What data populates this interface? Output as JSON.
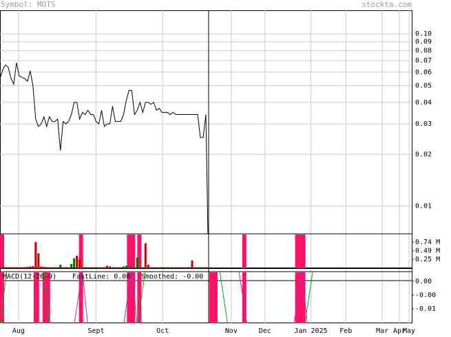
{
  "header": {
    "symbol": "Symbol: MOTS",
    "site": "stockta.com"
  },
  "chart_data": [
    {
      "type": "line",
      "log": true,
      "color": "#000000",
      "grid": true,
      "xlim": [
        0,
        150
      ],
      "xticks": [
        {
          "value": 6.75,
          "label": "Aug"
        },
        {
          "value": 35,
          "label": "Sept"
        },
        {
          "value": 59.25,
          "label": "Oct"
        },
        {
          "value": 84.25,
          "label": "Nov"
        },
        {
          "value": 96.5,
          "label": "Dec"
        },
        {
          "value": 113.25,
          "label": "Jan 2025"
        },
        {
          "value": 126,
          "label": "Feb"
        },
        {
          "value": 139.25,
          "label": "Mar"
        },
        {
          "value": 145.5,
          "label": "Apr"
        },
        {
          "value": 149,
          "label": "May"
        }
      ],
      "ylim": [
        0.0069,
        0.137
      ],
      "yticks": [
        {
          "value": 0.1,
          "label": "0.10"
        },
        0.09,
        0.08,
        0.07,
        0.06,
        {
          "value": 0.05,
          "label": "0.05"
        },
        0.04,
        0.03,
        0.02,
        0.01
      ],
      "values": [
        0.055,
        0.062,
        0.066,
        0.064,
        0.055,
        0.051,
        0.068,
        0.057,
        0.056,
        0.055,
        0.053,
        0.061,
        0.05,
        0.032,
        0.029,
        0.03,
        0.033,
        0.029,
        0.033,
        0.031,
        0.031,
        0.032,
        0.021,
        0.031,
        0.03,
        0.031,
        0.034,
        0.04,
        0.04,
        0.032,
        0.035,
        0.034,
        0.036,
        0.034,
        0.034,
        0.031,
        0.03,
        0.036,
        0.029,
        0.03,
        0.03,
        0.038,
        0.031,
        0.031,
        0.031,
        0.034,
        0.041,
        0.047,
        0.047,
        0.034,
        0.036,
        0.04,
        0.035,
        0.04,
        0.04,
        0.039,
        0.04,
        0.036,
        0.037,
        0.035,
        0.035,
        0.035,
        0.034,
        0.035,
        0.034,
        0.034,
        0.034,
        0.034,
        0.034,
        0.034,
        0.034,
        0.034,
        0.034,
        0.025,
        0.025,
        0.034,
        0.004
      ]
    },
    {
      "type": "bar",
      "ylim": [
        0,
        0.97
      ],
      "yticks": [
        {
          "value": 0.74,
          "label": "0.74 M"
        },
        {
          "value": 0.49,
          "label": "0.49 M"
        },
        {
          "value": 0.25,
          "label": "0.25 M"
        }
      ],
      "bands_color": "#ff1166",
      "bands": [
        [
          0,
          1.5
        ],
        [
          28.75,
          30.25
        ],
        [
          46.25,
          49.25
        ],
        [
          50,
          51.5
        ],
        [
          88.25,
          89.75
        ],
        [
          107.5,
          111.25
        ]
      ],
      "series": [
        {
          "color": "#cc0000",
          "values": [
            0.03,
            0.03,
            0.03,
            0.03,
            0.03,
            0.03,
            0.03,
            0.03,
            0.03,
            0.03,
            0.04,
            0.05,
            0.06,
            0.74,
            0.42,
            0.05,
            0.04,
            0.03,
            null,
            0.03,
            null,
            0.03,
            null,
            0.03,
            null,
            0.03,
            null,
            null,
            0.35,
            0.25,
            0.03,
            null,
            0.03,
            null,
            0.03,
            null,
            0.03,
            null,
            0.03,
            0.07,
            0.05,
            null,
            0.03,
            null,
            0.03,
            null,
            null,
            null,
            0.03,
            null,
            null,
            null,
            null,
            0.7,
            0.1,
            0.03,
            null,
            0.03,
            null,
            0.03,
            null,
            0.03,
            null,
            0.03,
            null,
            0.03,
            null,
            0.03,
            null,
            0.03,
            0.22,
            0.03,
            null,
            null,
            null,
            0.03,
            0.03
          ]
        },
        {
          "color": "#006600",
          "values": [
            null,
            null,
            null,
            null,
            null,
            null,
            null,
            null,
            null,
            null,
            null,
            null,
            null,
            null,
            null,
            null,
            null,
            null,
            0.03,
            null,
            0.03,
            null,
            0.1,
            null,
            0.03,
            null,
            0.12,
            0.28,
            null,
            null,
            null,
            0.03,
            null,
            0.03,
            null,
            0.03,
            null,
            0.03,
            null,
            null,
            null,
            0.03,
            null,
            0.03,
            null,
            0.05,
            0.07,
            0.03,
            null,
            0.03,
            0.3,
            0.03,
            0.03,
            null,
            null,
            null,
            0.03,
            null,
            0.03,
            null,
            0.03,
            null,
            0.03,
            null,
            0.03,
            null,
            0.03,
            null,
            0.03,
            null,
            null,
            null,
            0.03,
            0.03,
            0.03,
            null,
            null
          ]
        }
      ]
    },
    {
      "type": "macd",
      "title": "MACD(12-26-9)",
      "fast_label": "FastLine: 0.00",
      "smooth_label": "Smoothed: -0.00",
      "ylim": [
        -0.01525,
        0.0035
      ],
      "yticks": [
        {
          "value": 0,
          "label": "0.00"
        },
        {
          "value": -0.005,
          "label": "-0.00"
        },
        -0.01
      ],
      "bands_color": "#ff1166",
      "bands": [
        [
          0,
          1.5
        ],
        [
          12.25,
          14.25
        ],
        [
          15.5,
          18.25
        ],
        [
          28.75,
          30.25
        ],
        [
          46.25,
          49.25
        ],
        [
          50,
          51.5
        ],
        [
          76.25,
          79.25
        ],
        [
          88.25,
          89.75
        ],
        [
          107.5,
          111.25
        ]
      ],
      "series": [
        {
          "name": "FastLine",
          "color": "#00aa00",
          "x": [
            0,
            2.5,
            3,
            16,
            18,
            19,
            50,
            53,
            54,
            80,
            83,
            84,
            111,
            114
          ],
          "values": [
            -0.016,
            0.004,
            null,
            0.004,
            -0.016,
            null,
            -0.016,
            0.004,
            null,
            0.004,
            -0.016,
            null,
            -0.016,
            0.004
          ]
        },
        {
          "name": "Smoothed",
          "color": "#9933cc",
          "x": [
            27,
            30,
            32,
            33,
            45,
            48,
            50,
            51,
            87,
            90,
            93,
            94,
            107,
            110,
            112
          ],
          "values": [
            -0.016,
            0.004,
            -0.016,
            null,
            -0.016,
            0.004,
            -0.016,
            null,
            0.004,
            -0.016,
            -0.016,
            null,
            -0.016,
            0.004,
            -0.016
          ]
        }
      ]
    }
  ]
}
